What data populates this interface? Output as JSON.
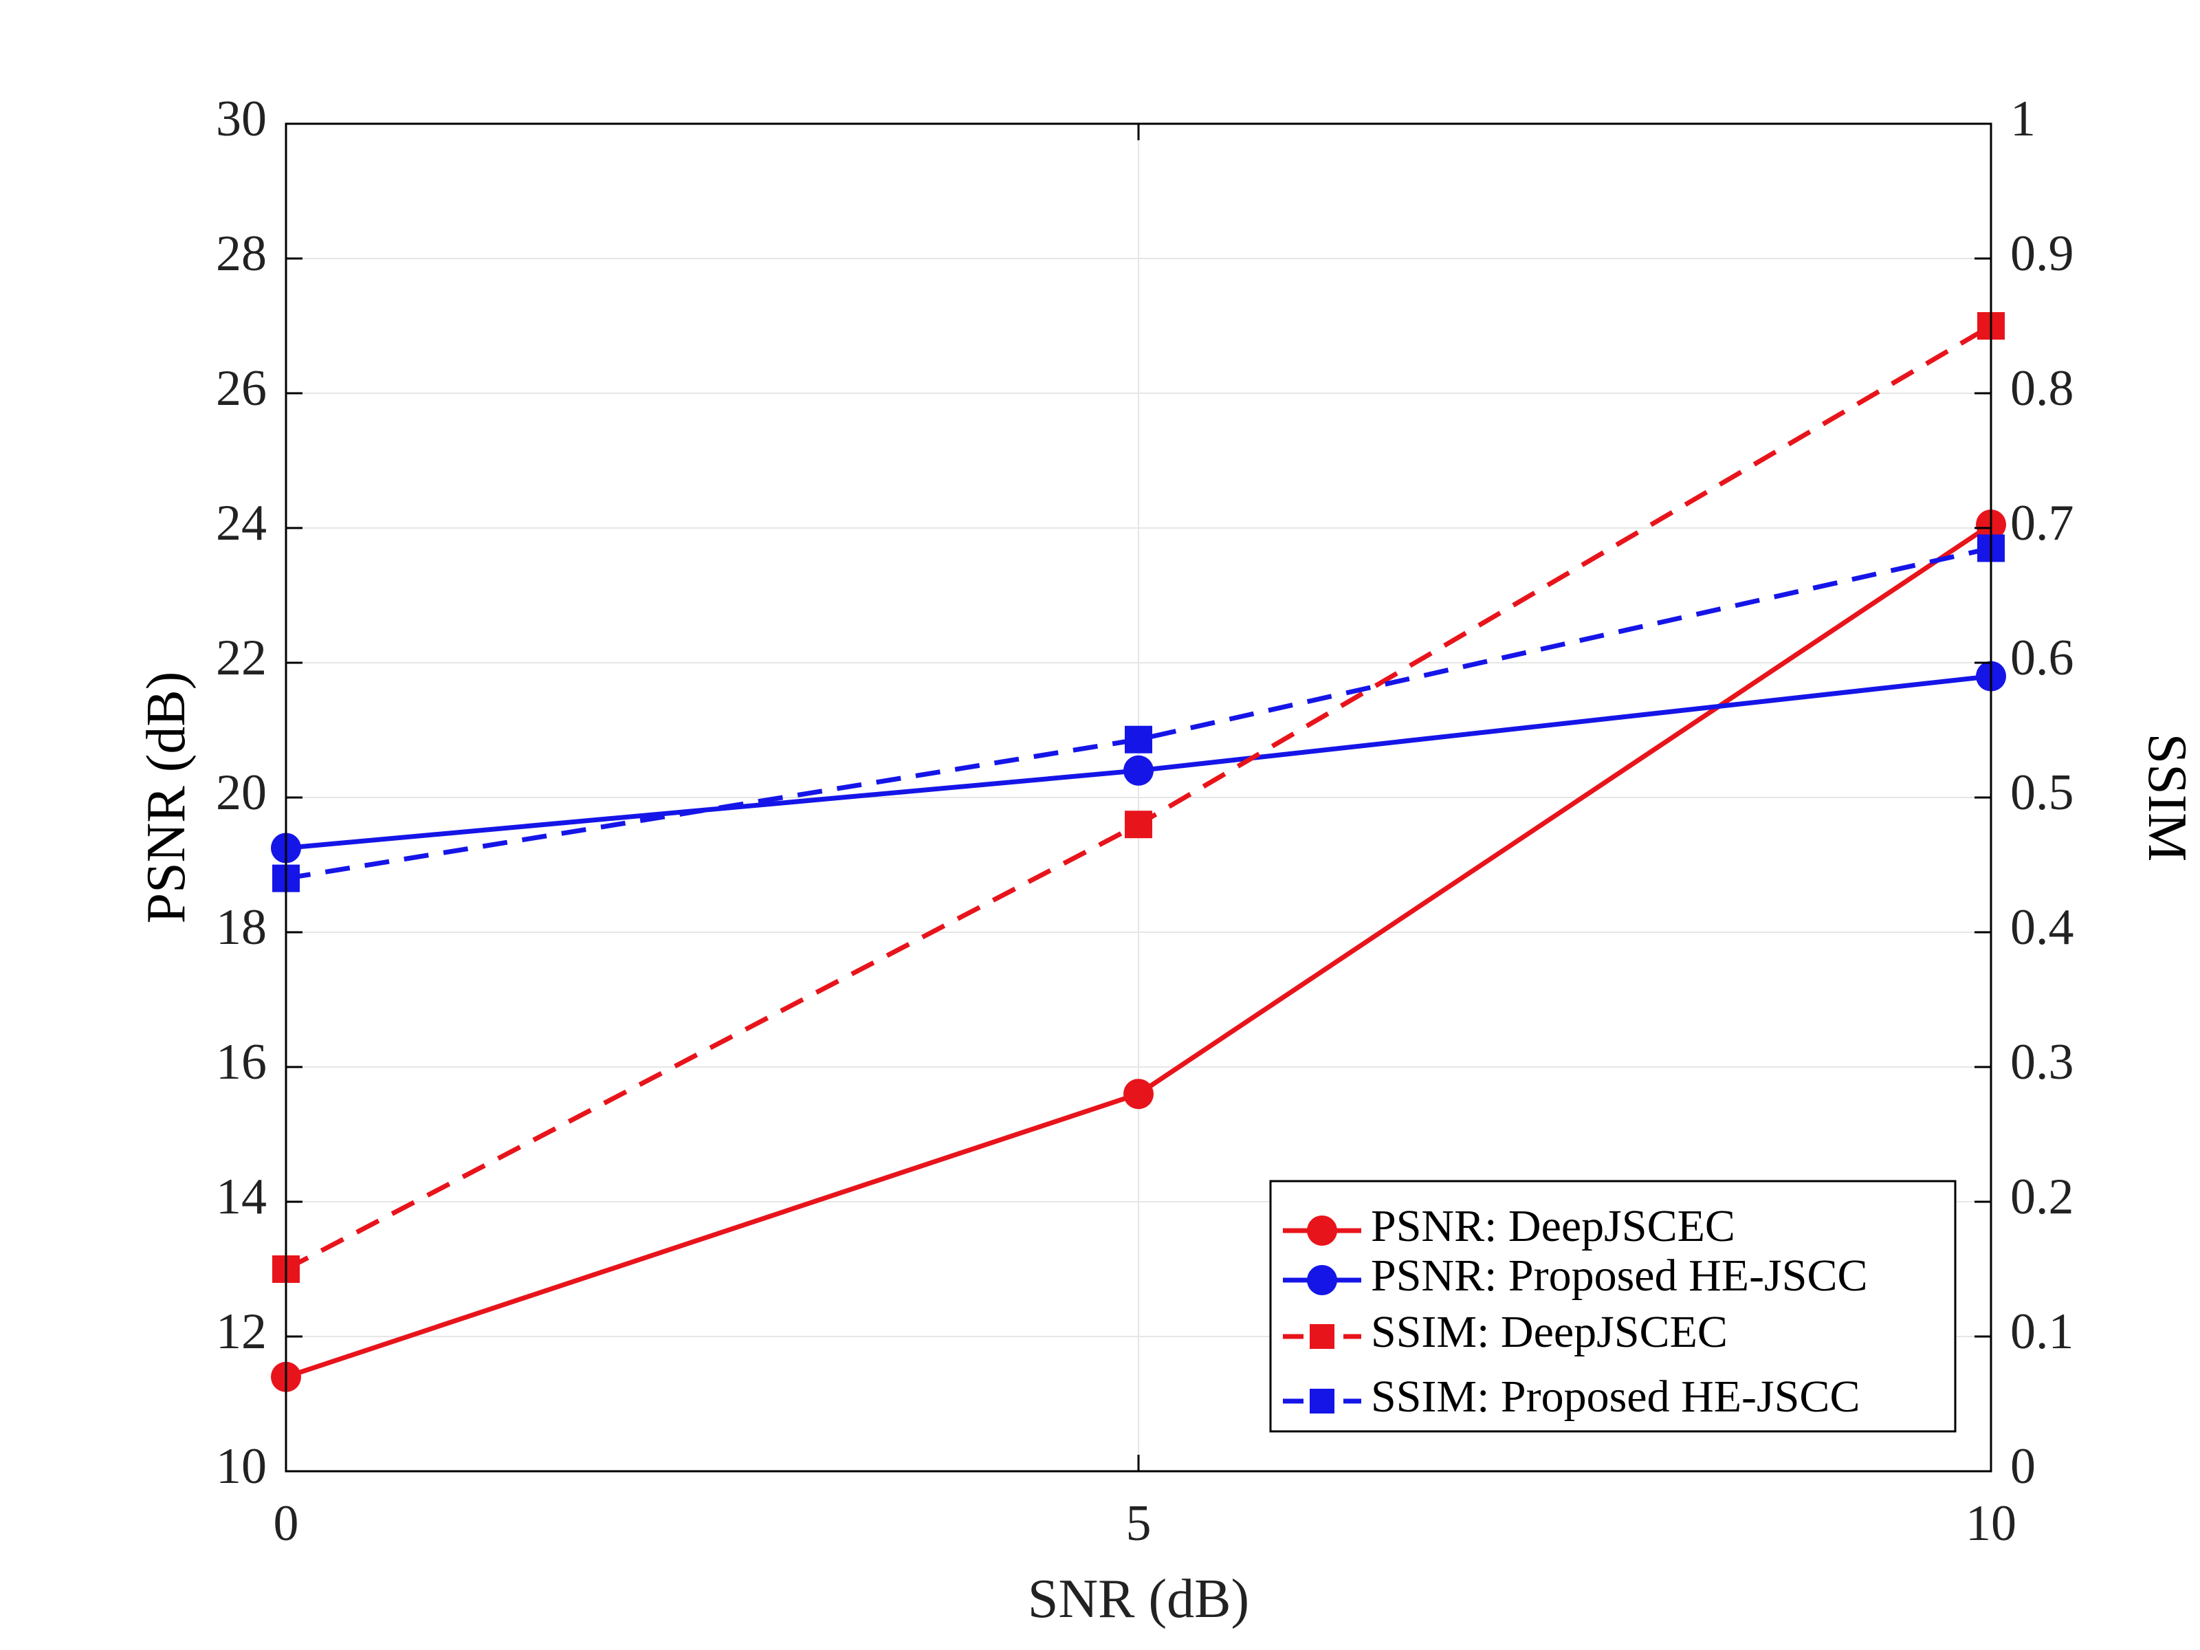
{
  "chart_data": {
    "type": "line",
    "xlabel": "SNR (dB)",
    "ylabel_left": "PSNR (dB)",
    "ylabel_right": "SSIM",
    "x": [
      0,
      5,
      10
    ],
    "xlim": [
      0,
      10
    ],
    "xticks": [
      0,
      5,
      10
    ],
    "ylim_left": [
      10,
      30
    ],
    "yticks_left": [
      10,
      12,
      14,
      16,
      18,
      20,
      22,
      24,
      26,
      28,
      30
    ],
    "ylim_right": [
      0,
      1
    ],
    "yticks_right": [
      0,
      0.1,
      0.2,
      0.3,
      0.4,
      0.5,
      0.6,
      0.7,
      0.8,
      0.9,
      1
    ],
    "grid": true,
    "legend_position": "bottom-right",
    "series": [
      {
        "name": "PSNR: DeepJSCEC",
        "axis": "left",
        "values": [
          11.4,
          15.6,
          24.05
        ],
        "color": "#e8141b",
        "line": "solid",
        "marker": "circle"
      },
      {
        "name": "PSNR: Proposed HE-JSCC",
        "axis": "left",
        "values": [
          19.25,
          20.4,
          21.8
        ],
        "color": "#1515e8",
        "line": "solid",
        "marker": "circle"
      },
      {
        "name": "SSIM: DeepJSCEC",
        "axis": "right",
        "values": [
          0.15,
          0.48,
          0.85
        ],
        "color": "#e8141b",
        "line": "dashed",
        "marker": "square"
      },
      {
        "name": "SSIM: Proposed HE-JSCC",
        "axis": "right",
        "values": [
          0.44,
          0.543,
          0.685
        ],
        "color": "#1515e8",
        "line": "dashed",
        "marker": "square"
      }
    ]
  }
}
